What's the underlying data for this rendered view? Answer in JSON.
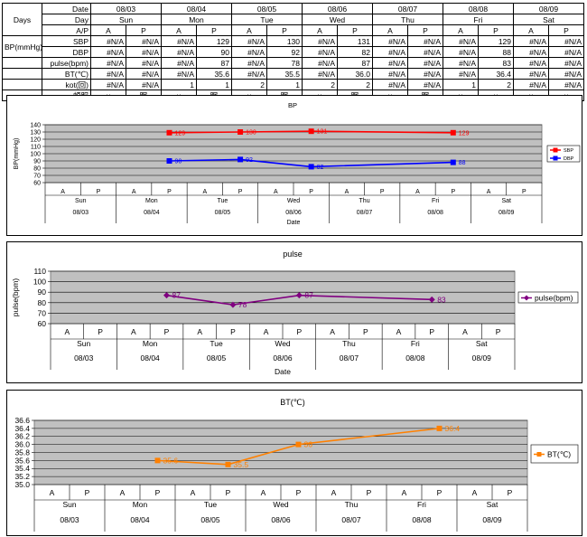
{
  "table": {
    "days_label": "Days",
    "date_label": "Date",
    "day_label": "Day",
    "ap_label": "A/P",
    "bp_label": "BP(mmHg)",
    "dates": [
      "08/03",
      "08/04",
      "08/05",
      "08/06",
      "08/07",
      "08/08",
      "08/09"
    ],
    "days": [
      "Sun",
      "Mon",
      "Tue",
      "Wed",
      "Thu",
      "Fri",
      "Sat"
    ],
    "ap": [
      "A",
      "P",
      "A",
      "P",
      "A",
      "P",
      "A",
      "P",
      "A",
      "P",
      "A",
      "P",
      "A",
      "P"
    ],
    "rows": [
      {
        "label": "SBP",
        "values": [
          "#N/A",
          "#N/A",
          "#N/A",
          "129",
          "#N/A",
          "130",
          "#N/A",
          "131",
          "#N/A",
          "#N/A",
          "#N/A",
          "129",
          "#N/A",
          "#N/A"
        ]
      },
      {
        "label": "DBP",
        "values": [
          "#N/A",
          "#N/A",
          "#N/A",
          "90",
          "#N/A",
          "92",
          "#N/A",
          "82",
          "#N/A",
          "#N/A",
          "#N/A",
          "88",
          "#N/A",
          "#N/A"
        ]
      },
      {
        "label": "pulse(bpm)",
        "values": [
          "#N/A",
          "#N/A",
          "#N/A",
          "87",
          "#N/A",
          "78",
          "#N/A",
          "87",
          "#N/A",
          "#N/A",
          "#N/A",
          "83",
          "#N/A",
          "#N/A"
        ]
      },
      {
        "label": "BT(℃)",
        "values": [
          "#N/A",
          "#N/A",
          "#N/A",
          "35.6",
          "#N/A",
          "35.5",
          "#N/A",
          "36.0",
          "#N/A",
          "#N/A",
          "#N/A",
          "36.4",
          "#N/A",
          "#N/A"
        ]
      },
      {
        "label": "kot(回)",
        "values": [
          "#N/A",
          "#N/A",
          "1",
          "1",
          "2",
          "1",
          "2",
          "2",
          "#N/A",
          "#N/A",
          "1",
          "2",
          "#N/A",
          "#N/A"
        ]
      },
      {
        "label": "頓服",
        "values": [
          "×",
          "眠",
          "×",
          "眠",
          "×",
          "眠",
          "×",
          "眠",
          "×",
          "眠",
          "×",
          "×",
          "×",
          "×"
        ]
      }
    ]
  },
  "chart_data": [
    {
      "type": "line",
      "title": "BP",
      "ylabel": "BP(mmHg)",
      "xlabel": "Date",
      "ylim": [
        60,
        140
      ],
      "yticks": [
        60,
        70,
        80,
        90,
        100,
        110,
        120,
        130,
        140
      ],
      "x_ap": [
        "A",
        "P",
        "A",
        "P",
        "A",
        "P",
        "A",
        "P",
        "A",
        "P",
        "A",
        "P",
        "A",
        "P"
      ],
      "x_days": [
        "Sun",
        "Mon",
        "Tue",
        "Wed",
        "Thu",
        "Fri",
        "Sat"
      ],
      "x_dates": [
        "08/03",
        "08/04",
        "08/05",
        "08/06",
        "08/07",
        "08/08",
        "08/09"
      ],
      "grid": true,
      "legend_position": "right",
      "series": [
        {
          "name": "SBP",
          "color": "#ff0000",
          "marker": "square",
          "values": [
            null,
            null,
            null,
            129,
            null,
            130,
            null,
            131,
            null,
            null,
            null,
            129,
            null,
            null
          ]
        },
        {
          "name": "DBP",
          "color": "#0000ff",
          "marker": "square",
          "values": [
            null,
            null,
            null,
            90,
            null,
            92,
            null,
            82,
            null,
            null,
            null,
            88,
            null,
            null
          ]
        }
      ]
    },
    {
      "type": "line",
      "title": "pulse",
      "ylabel": "pulse(bpm)",
      "xlabel": "Date",
      "ylim": [
        60,
        110
      ],
      "yticks": [
        60,
        70,
        80,
        90,
        100,
        110
      ],
      "x_ap": [
        "A",
        "P",
        "A",
        "P",
        "A",
        "P",
        "A",
        "P",
        "A",
        "P",
        "A",
        "P",
        "A",
        "P"
      ],
      "x_days": [
        "Sun",
        "Mon",
        "Tue",
        "Wed",
        "Thu",
        "Fri",
        "Sat"
      ],
      "x_dates": [
        "08/03",
        "08/04",
        "08/05",
        "08/06",
        "08/07",
        "08/08",
        "08/09"
      ],
      "grid": true,
      "legend_position": "right",
      "series": [
        {
          "name": "pulse(bpm)",
          "color": "#800080",
          "marker": "diamond",
          "values": [
            null,
            null,
            null,
            87,
            null,
            78,
            null,
            87,
            null,
            null,
            null,
            83,
            null,
            null
          ]
        }
      ]
    },
    {
      "type": "line",
      "title": "BT(℃)",
      "ylabel": "",
      "xlabel": "",
      "ylim": [
        35.0,
        36.6
      ],
      "yticks": [
        35.0,
        35.2,
        35.4,
        35.6,
        35.8,
        36.0,
        36.2,
        36.4,
        36.6
      ],
      "x_ap": [
        "A",
        "P",
        "A",
        "P",
        "A",
        "P",
        "A",
        "P",
        "A",
        "P",
        "A",
        "P",
        "A",
        "P"
      ],
      "x_days": [
        "Sun",
        "Mon",
        "Tue",
        "Wed",
        "Thu",
        "Fri",
        "Sat"
      ],
      "x_dates": [
        "08/03",
        "08/04",
        "08/05",
        "08/06",
        "08/07",
        "08/08",
        "08/09"
      ],
      "grid": true,
      "legend_position": "right",
      "series": [
        {
          "name": "BT(℃)",
          "color": "#ff8000",
          "marker": "square",
          "values": [
            null,
            null,
            null,
            35.6,
            null,
            35.5,
            null,
            36.0,
            null,
            null,
            null,
            36.4,
            null,
            null
          ]
        }
      ]
    }
  ]
}
